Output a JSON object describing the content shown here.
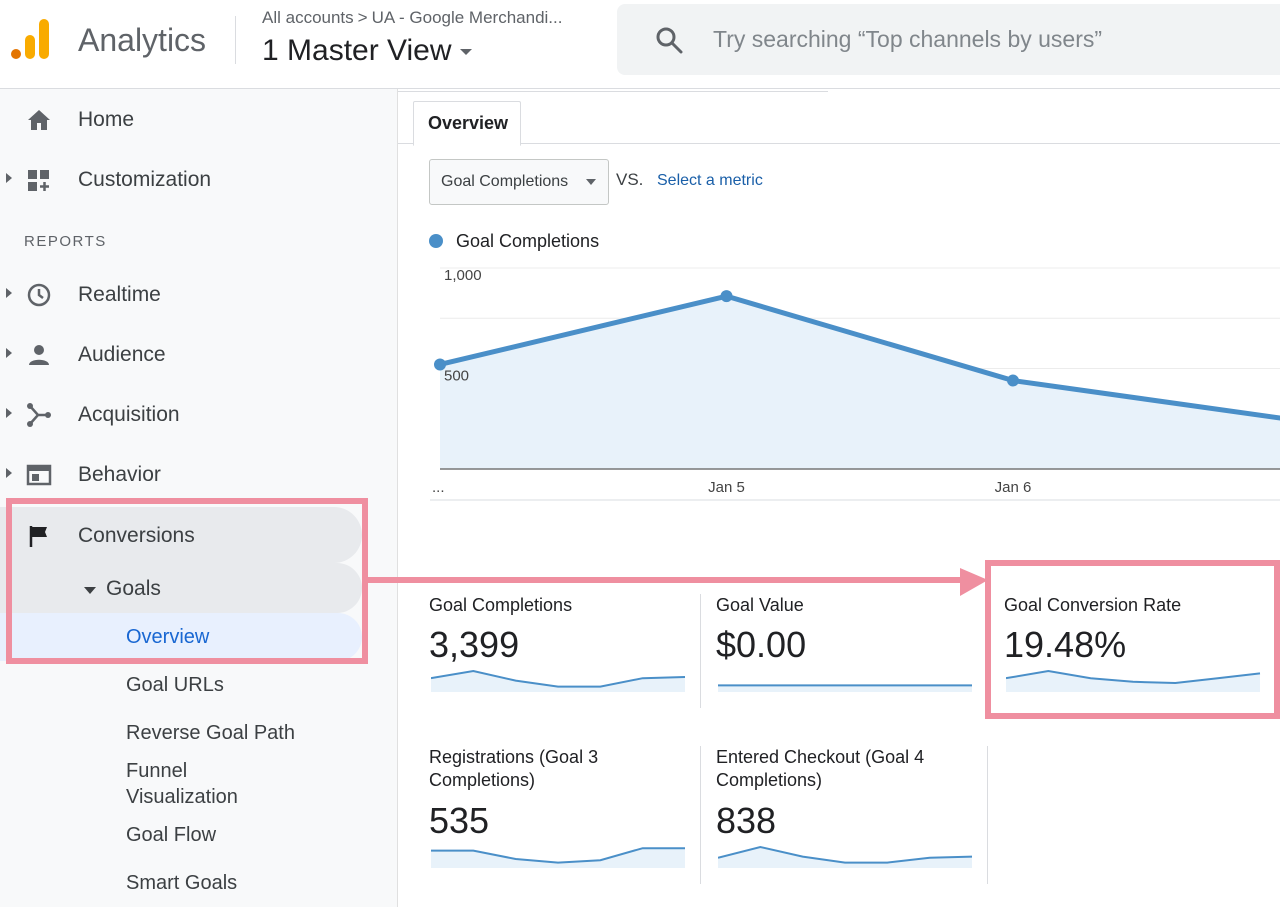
{
  "header": {
    "app_name": "Analytics",
    "breadcrumb": [
      "All accounts",
      "UA - Google Merchandi..."
    ],
    "view_name": "1 Master View",
    "search_placeholder": "Try searching “Top channels by users”"
  },
  "sidebar": {
    "items": [
      {
        "label": "Home",
        "icon": "home-icon"
      },
      {
        "label": "Customization",
        "icon": "dashboard-icon"
      }
    ],
    "reports_heading": "REPORTS",
    "reports": [
      {
        "label": "Realtime",
        "icon": "clock-icon"
      },
      {
        "label": "Audience",
        "icon": "person-icon"
      },
      {
        "label": "Acquisition",
        "icon": "acquisition-icon"
      },
      {
        "label": "Behavior",
        "icon": "behavior-icon"
      },
      {
        "label": "Conversions",
        "icon": "flag-icon"
      }
    ],
    "goals_label": "Goals",
    "goals_children": [
      "Overview",
      "Goal URLs",
      "Reverse Goal Path",
      "Funnel Visualization",
      "Goal Flow",
      "Smart Goals"
    ],
    "active_child": "Overview"
  },
  "main": {
    "tab": "Overview",
    "metric_select": "Goal Completions",
    "vs": "VS.",
    "select_metric": "Select a metric",
    "legend": "Goal Completions",
    "colors": {
      "series": "#4a8fc8",
      "area": "#e8f2fa",
      "highlight": "#ef8fa0"
    }
  },
  "chart_data": {
    "type": "area",
    "series": [
      {
        "name": "Goal Completions",
        "values": [
          520,
          860,
          440,
          240
        ]
      }
    ],
    "x": [
      "...",
      "Jan 5",
      "Jan 6",
      ""
    ],
    "y_ticks": [
      "1,000",
      "500"
    ],
    "ylim": [
      0,
      1000
    ],
    "grid": true
  },
  "scorecards": [
    {
      "title": "Goal Completions",
      "value": "3,399",
      "spark": [
        0.45,
        0.75,
        0.35,
        0.1,
        0.1,
        0.45,
        0.5
      ]
    },
    {
      "title": "Goal Value",
      "value": "$0.00",
      "spark": [
        0.15,
        0.15,
        0.15,
        0.15,
        0.15,
        0.15,
        0.15
      ]
    },
    {
      "title": "Goal Conversion Rate",
      "value": "19.48%",
      "spark": [
        0.45,
        0.75,
        0.45,
        0.3,
        0.25,
        0.45,
        0.65
      ]
    },
    {
      "title_lines": [
        "Registrations (Goal 3",
        "Completions)"
      ],
      "value": "535",
      "spark": [
        0.6,
        0.6,
        0.25,
        0.1,
        0.2,
        0.7,
        0.7
      ]
    },
    {
      "title_lines": [
        "Entered Checkout (Goal 4",
        "Completions)"
      ],
      "value": "838",
      "spark": [
        0.3,
        0.75,
        0.35,
        0.1,
        0.1,
        0.3,
        0.35
      ]
    }
  ]
}
